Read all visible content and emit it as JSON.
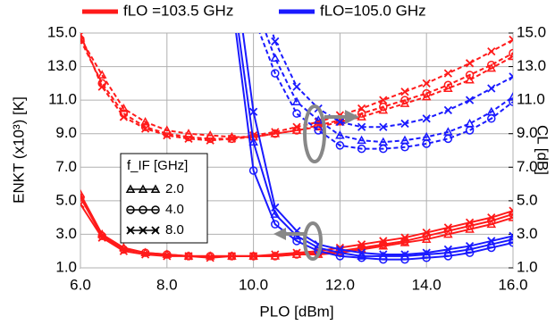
{
  "chart_data": {
    "type": "line",
    "xlabel": "PLO [dBm]",
    "ylabel": "ENKT (x10³) [K]",
    "y2label": "CL [dB]",
    "grid": true,
    "xlim": [
      6,
      16
    ],
    "ylim": [
      1,
      15
    ],
    "y2lim": [
      1,
      15
    ],
    "xticks": [
      {
        "value": 6,
        "label": "6.0"
      },
      {
        "value": 8,
        "label": "8.0"
      },
      {
        "value": 10,
        "label": "10.0"
      },
      {
        "value": 12,
        "label": "12.0"
      },
      {
        "value": 14,
        "label": "14.0"
      },
      {
        "value": 16,
        "label": "16.0"
      }
    ],
    "yticks": [
      {
        "value": 1,
        "label": "1.0"
      },
      {
        "value": 3,
        "label": "3.0"
      },
      {
        "value": 5,
        "label": "5.0"
      },
      {
        "value": 7,
        "label": "7.0"
      },
      {
        "value": 9,
        "label": "9.0"
      },
      {
        "value": 11,
        "label": "11.0"
      },
      {
        "value": 13,
        "label": "13.0"
      },
      {
        "value": 15,
        "label": "15.0"
      }
    ],
    "y2ticks": [
      {
        "value": 1,
        "label": "1.0"
      },
      {
        "value": 3,
        "label": "3.0"
      },
      {
        "value": 5,
        "label": "5.0"
      },
      {
        "value": 7,
        "label": "7.0"
      },
      {
        "value": 9,
        "label": "9.0"
      },
      {
        "value": 11,
        "label": "11.0"
      },
      {
        "value": 13,
        "label": "13.0"
      },
      {
        "value": 15,
        "label": "15.0"
      }
    ],
    "if_legend": {
      "title": "f_IF [GHz]",
      "items": [
        {
          "label": "2.0",
          "marker": "triangle"
        },
        {
          "label": "4.0",
          "marker": "circle"
        },
        {
          "label": "8.0",
          "marker": "x"
        }
      ]
    },
    "groups": [
      {
        "name": "fLO =103.5  GHz",
        "color": "#ff1a1a",
        "x": [
          6,
          6.5,
          7,
          7.5,
          8,
          8.5,
          9,
          9.5,
          10,
          10.5,
          11,
          11.5,
          12,
          12.5,
          13,
          13.5,
          14,
          14.5,
          15,
          15.5,
          16
        ],
        "series": [
          {
            "marker": "triangle",
            "axis": "y",
            "dash": false,
            "values": [
              5.4,
              3.0,
              2.2,
              1.9,
              1.8,
              1.7,
              1.7,
              1.7,
              1.7,
              1.7,
              1.8,
              1.8,
              1.9,
              2.1,
              2.3,
              2.5,
              2.7,
              3.0,
              3.3,
              3.6,
              4.0
            ]
          },
          {
            "marker": "circle",
            "axis": "y",
            "dash": false,
            "values": [
              5.2,
              2.9,
              2.1,
              1.9,
              1.8,
              1.7,
              1.7,
              1.7,
              1.7,
              1.7,
              1.8,
              1.9,
              2.0,
              2.2,
              2.4,
              2.6,
              2.9,
              3.2,
              3.5,
              3.8,
              4.2
            ]
          },
          {
            "marker": "x",
            "axis": "y",
            "dash": false,
            "values": [
              4.8,
              2.8,
              2.0,
              1.8,
              1.7,
              1.7,
              1.6,
              1.7,
              1.7,
              1.8,
              1.9,
              2.0,
              2.2,
              2.4,
              2.6,
              2.8,
              3.1,
              3.4,
              3.7,
              4.0,
              4.4
            ]
          },
          {
            "marker": "triangle",
            "axis": "y2",
            "dash": true,
            "values": [
              14.7,
              12.5,
              10.5,
              9.7,
              9.2,
              9.0,
              8.9,
              8.8,
              8.8,
              9.0,
              9.2,
              9.4,
              9.7,
              10.0,
              10.4,
              10.8,
              11.2,
              11.7,
              12.2,
              12.9,
              13.6
            ]
          },
          {
            "marker": "circle",
            "axis": "y2",
            "dash": true,
            "values": [
              14.6,
              12.0,
              10.2,
              9.4,
              9.0,
              8.8,
              8.7,
              8.7,
              8.8,
              9.0,
              9.2,
              9.5,
              9.8,
              10.2,
              10.6,
              11.0,
              11.4,
              11.9,
              12.5,
              13.1,
              13.8
            ]
          },
          {
            "marker": "x",
            "axis": "y2",
            "dash": true,
            "values": [
              14.9,
              11.8,
              10.0,
              9.3,
              8.9,
              8.7,
              8.6,
              8.7,
              8.9,
              9.1,
              9.4,
              9.7,
              10.1,
              10.5,
              11.0,
              11.5,
              12.0,
              12.6,
              13.2,
              13.9,
              14.6
            ]
          }
        ]
      },
      {
        "name": "fLO=105.0  GHz",
        "color": "#1a1aff",
        "x": [
          9.5,
          10,
          10.5,
          11,
          11.5,
          12,
          12.5,
          13,
          13.5,
          14,
          14.5,
          15,
          15.5,
          16
        ],
        "series": [
          {
            "marker": "triangle",
            "axis": "y",
            "dash": false,
            "values": [
              18,
              8.5,
              4.2,
              2.9,
              2.2,
              1.9,
              1.7,
              1.7,
              1.7,
              1.8,
              1.9,
              2.1,
              2.4,
              2.7
            ]
          },
          {
            "marker": "circle",
            "axis": "y",
            "dash": false,
            "values": [
              17,
              6.8,
              3.6,
              2.6,
              2.0,
              1.7,
              1.6,
              1.5,
              1.5,
              1.6,
              1.7,
              1.9,
              2.2,
              2.5
            ]
          },
          {
            "marker": "x",
            "axis": "y",
            "dash": false,
            "values": [
              20,
              10.3,
              4.6,
              3.2,
              2.4,
              2.1,
              1.9,
              1.8,
              1.8,
              1.9,
              2.1,
              2.3,
              2.6,
              2.9
            ]
          },
          {
            "marker": "triangle",
            "axis": "y2",
            "dash": true,
            "values": [
              null,
              17,
              13.5,
              10.9,
              9.8,
              8.9,
              8.6,
              8.5,
              8.6,
              8.8,
              9.1,
              9.6,
              10.3,
              11.2
            ]
          },
          {
            "marker": "circle",
            "axis": "y2",
            "dash": true,
            "values": [
              null,
              16,
              12.6,
              10.2,
              9.2,
              8.3,
              8.1,
              8.1,
              8.2,
              8.4,
              8.7,
              9.2,
              9.9,
              10.9
            ]
          },
          {
            "marker": "x",
            "axis": "y2",
            "dash": true,
            "values": [
              null,
              19,
              14.5,
              11.8,
              10.5,
              9.7,
              9.4,
              9.4,
              9.6,
              9.9,
              10.4,
              11.0,
              11.7,
              12.4
            ]
          }
        ]
      }
    ]
  }
}
